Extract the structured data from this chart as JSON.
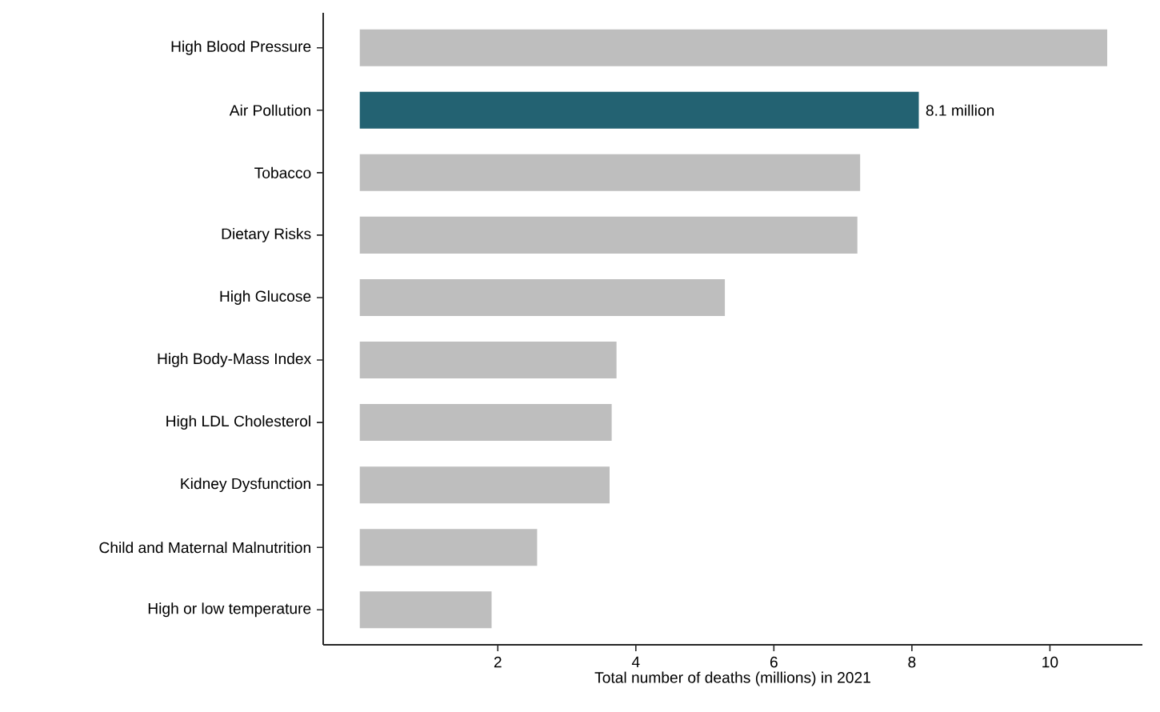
{
  "chart_data": {
    "type": "bar",
    "orientation": "horizontal",
    "categories": [
      "High Blood Pressure",
      "Air Pollution",
      "Tobacco",
      "Dietary Risks",
      "High Glucose",
      "High Body-Mass Index",
      "High LDL Cholesterol",
      "Kidney Dysfunction",
      "Child and Maternal Malnutrition",
      "High or low temperature"
    ],
    "values": [
      10.83,
      8.1,
      7.25,
      7.21,
      5.29,
      3.72,
      3.65,
      3.62,
      2.57,
      1.91
    ],
    "colors": [
      "#bebebe",
      "#236272",
      "#bebebe",
      "#bebebe",
      "#bebebe",
      "#bebebe",
      "#bebebe",
      "#bebebe",
      "#bebebe",
      "#bebebe"
    ],
    "value_labels": [
      null,
      "8.1 million",
      null,
      null,
      null,
      null,
      null,
      null,
      null,
      null
    ],
    "xlabel": "Total number of deaths (millions) in 2021",
    "xlim": [
      -0.53,
      11.34
    ],
    "xticks": [
      2,
      4,
      6,
      8,
      10
    ],
    "grid": false
  }
}
